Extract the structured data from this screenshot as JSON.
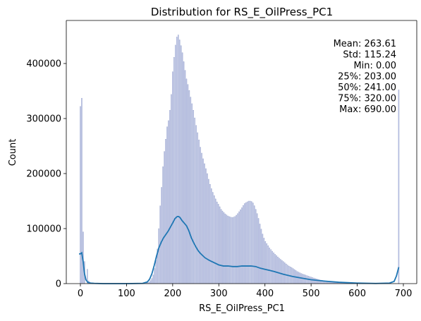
{
  "chart_data": {
    "type": "histogram",
    "title": "Distribution for RS_E_OilPress_PC1",
    "xlabel": "RS_E_OilPress_PC1",
    "ylabel": "Count",
    "xlim": [
      -20,
      710
    ],
    "ylim": [
      0,
      470000
    ],
    "x_ticks": [
      0,
      100,
      200,
      300,
      400,
      500,
      600,
      700
    ],
    "y_ticks": [
      0,
      100000,
      200000,
      300000,
      400000
    ],
    "grid": false,
    "bar_color": "#c6cbec",
    "kde_color": "#1f77b4",
    "stats": [
      "Mean: 263.61",
      "Std: 115.24",
      "Min: 0.00",
      "25%: 203.00",
      "50%: 241.00",
      "75%: 320.00",
      "Max: 690.00"
    ],
    "histogram": {
      "bin_width": 3,
      "spikes": [
        {
          "x": 0,
          "count": 322000
        },
        {
          "x": 3,
          "count": 337000
        },
        {
          "x": 6,
          "count": 94000
        },
        {
          "x": 9,
          "count": 40000
        },
        {
          "x": 15,
          "count": 26000
        },
        {
          "x": 18,
          "count": 5000
        },
        {
          "x": 690,
          "count": 352000
        }
      ],
      "envelope": [
        [
          140,
          0
        ],
        [
          150,
          3000
        ],
        [
          157,
          12000
        ],
        [
          163,
          35000
        ],
        [
          168,
          70000
        ],
        [
          172,
          130000
        ],
        [
          176,
          175000
        ],
        [
          180,
          225000
        ],
        [
          184,
          255000
        ],
        [
          188,
          285000
        ],
        [
          192,
          300000
        ],
        [
          196,
          330000
        ],
        [
          200,
          385000
        ],
        [
          204,
          420000
        ],
        [
          208,
          447000
        ],
        [
          212,
          452000
        ],
        [
          216,
          440000
        ],
        [
          220,
          425000
        ],
        [
          225,
          398000
        ],
        [
          230,
          372000
        ],
        [
          235,
          355000
        ],
        [
          240,
          335000
        ],
        [
          245,
          315000
        ],
        [
          250,
          292000
        ],
        [
          255,
          270000
        ],
        [
          260,
          248000
        ],
        [
          265,
          230000
        ],
        [
          270,
          215000
        ],
        [
          275,
          200000
        ],
        [
          280,
          183000
        ],
        [
          285,
          170000
        ],
        [
          290,
          160000
        ],
        [
          295,
          150000
        ],
        [
          300,
          143000
        ],
        [
          305,
          135000
        ],
        [
          310,
          130000
        ],
        [
          315,
          126000
        ],
        [
          320,
          123000
        ],
        [
          325,
          121000
        ],
        [
          330,
          120000
        ],
        [
          335,
          122000
        ],
        [
          340,
          126000
        ],
        [
          345,
          132000
        ],
        [
          350,
          138000
        ],
        [
          355,
          145000
        ],
        [
          360,
          148000
        ],
        [
          365,
          150000
        ],
        [
          370,
          150000
        ],
        [
          375,
          146000
        ],
        [
          380,
          135000
        ],
        [
          385,
          122000
        ],
        [
          390,
          105000
        ],
        [
          395,
          90000
        ],
        [
          400,
          78000
        ],
        [
          410,
          65000
        ],
        [
          420,
          55000
        ],
        [
          430,
          47000
        ],
        [
          440,
          40000
        ],
        [
          450,
          33000
        ],
        [
          460,
          28000
        ],
        [
          470,
          22000
        ],
        [
          480,
          18000
        ],
        [
          490,
          15000
        ],
        [
          500,
          12000
        ],
        [
          510,
          9000
        ],
        [
          520,
          6500
        ],
        [
          530,
          5000
        ],
        [
          540,
          3500
        ],
        [
          560,
          2000
        ],
        [
          580,
          1200
        ],
        [
          600,
          700
        ],
        [
          630,
          300
        ],
        [
          660,
          100
        ],
        [
          685,
          0
        ]
      ]
    },
    "kde": {
      "x": [
        -3,
        0,
        3,
        6,
        9,
        12,
        16,
        22,
        30,
        50,
        100,
        135,
        145,
        150,
        155,
        160,
        165,
        170,
        175,
        180,
        190,
        200,
        205,
        210,
        213,
        216,
        220,
        225,
        230,
        235,
        240,
        245,
        250,
        255,
        260,
        270,
        280,
        290,
        300,
        310,
        320,
        330,
        340,
        350,
        355,
        360,
        370,
        380,
        390,
        400,
        420,
        440,
        460,
        480,
        500,
        530,
        560,
        600,
        640,
        670,
        680,
        685,
        690
      ],
      "y": [
        54000,
        54000,
        56000,
        40000,
        18000,
        7000,
        2500,
        1000,
        500,
        0,
        0,
        500,
        3000,
        8000,
        18000,
        33000,
        50000,
        65000,
        75000,
        83000,
        95000,
        110000,
        118000,
        122000,
        122000,
        120000,
        115000,
        110000,
        105000,
        96000,
        84000,
        75000,
        67000,
        60000,
        55000,
        47000,
        42000,
        38000,
        34000,
        32000,
        32000,
        31000,
        31000,
        32000,
        32000,
        32000,
        32000,
        31000,
        28000,
        26000,
        22000,
        17000,
        13000,
        10000,
        7000,
        4500,
        2500,
        1000,
        300,
        1000,
        4000,
        14000,
        30000
      ]
    }
  }
}
